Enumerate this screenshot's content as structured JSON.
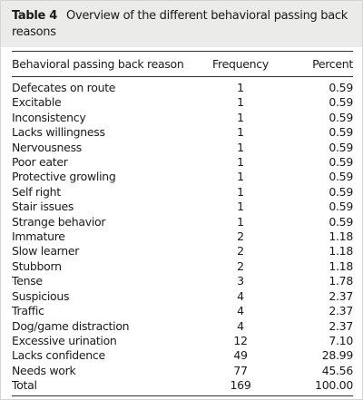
{
  "header": {
    "label": "Table 4",
    "title": "Overview of the different behavioral passing back reasons"
  },
  "table": {
    "columns": [
      "Behavioral passing back reason",
      "Frequency",
      "Percent"
    ],
    "rows": [
      [
        "Defecates on route",
        "1",
        "0.59"
      ],
      [
        "Excitable",
        "1",
        "0.59"
      ],
      [
        "Inconsistency",
        "1",
        "0.59"
      ],
      [
        "Lacks willingness",
        "1",
        "0.59"
      ],
      [
        "Nervousness",
        "1",
        "0.59"
      ],
      [
        "Poor eater",
        "1",
        "0.59"
      ],
      [
        "Protective growling",
        "1",
        "0.59"
      ],
      [
        "Self right",
        "1",
        "0.59"
      ],
      [
        "Stair issues",
        "1",
        "0.59"
      ],
      [
        "Strange behavior",
        "1",
        "0.59"
      ],
      [
        "Immature",
        "2",
        "1.18"
      ],
      [
        "Slow learner",
        "2",
        "1.18"
      ],
      [
        "Stubborn",
        "2",
        "1.18"
      ],
      [
        "Tense",
        "3",
        "1.78"
      ],
      [
        "Suspicious",
        "4",
        "2.37"
      ],
      [
        "Traffic",
        "4",
        "2.37"
      ],
      [
        "Dog/game distraction",
        "4",
        "2.37"
      ],
      [
        "Excessive urination",
        "12",
        "7.10"
      ],
      [
        "Lacks confidence",
        "49",
        "28.99"
      ],
      [
        "Needs work",
        "77",
        "45.56"
      ],
      [
        "Total",
        "169",
        "100.00"
      ]
    ]
  }
}
